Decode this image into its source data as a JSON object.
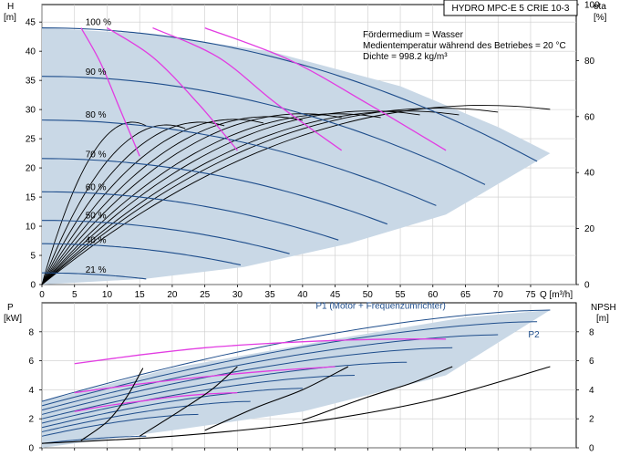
{
  "title_box": "HYDRO MPC-E 5 CRIE 10-3",
  "info": {
    "medium": "Fördermedium = Wasser",
    "temperature": "Medientemperatur während des Betriebes = 20 °C",
    "density": "Dichte = 998.2 kg/m³"
  },
  "colors": {
    "envelope": "#c9d8e6",
    "speed_curve": "#1f4e8c",
    "magenta": "#e23ce2",
    "eff_curve": "#000000",
    "grid": "#cccccc"
  },
  "chart_data": [
    {
      "type": "line",
      "name": "top",
      "y_axis_left": {
        "label_line1": "H",
        "label_line2": "[m]",
        "ticks": [
          0,
          5,
          10,
          15,
          20,
          25,
          30,
          35,
          40,
          45
        ],
        "range": [
          0,
          48
        ]
      },
      "y_axis_right": {
        "label_line1": "eta",
        "label_line2": "[%]",
        "ticks": [
          0,
          20,
          40,
          60,
          80,
          100
        ],
        "range": [
          0,
          100
        ]
      },
      "x_axis": {
        "label": "Q [m³/h]",
        "ticks": [
          0,
          5,
          10,
          15,
          20,
          25,
          30,
          35,
          40,
          45,
          50,
          55,
          60,
          65,
          70,
          75
        ],
        "range": [
          0,
          82
        ]
      },
      "speed_labels": [
        {
          "text": "100 %",
          "q": 2.2,
          "h": 44.5
        },
        {
          "text": "90 %",
          "q": 2.2,
          "h": 36.0
        },
        {
          "text": "80 %",
          "q": 2.2,
          "h": 28.6
        },
        {
          "text": "70 %",
          "q": 2.2,
          "h": 21.8
        },
        {
          "text": "60 %",
          "q": 2.2,
          "h": 16.2
        },
        {
          "text": "50 %",
          "q": 2.2,
          "h": 11.3
        },
        {
          "text": "40 %",
          "q": 2.2,
          "h": 7.1
        },
        {
          "text": "21 %",
          "q": 2.2,
          "h": 2.0
        }
      ],
      "speed_curves": [
        {
          "h0": 44,
          "qmax": 76
        },
        {
          "h0": 35.7,
          "qmax": 68
        },
        {
          "h0": 28.2,
          "qmax": 60.5
        },
        {
          "h0": 21.6,
          "qmax": 53
        },
        {
          "h0": 15.9,
          "qmax": 45.5
        },
        {
          "h0": 11.0,
          "qmax": 38
        },
        {
          "h0": 7.0,
          "qmax": 30.5
        },
        {
          "h0": 2.0,
          "qmax": 16
        }
      ],
      "envelope": {
        "q": [
          0,
          16,
          35,
          55,
          70,
          78,
          62,
          47,
          31,
          16,
          0
        ],
        "h": [
          44,
          43,
          40,
          34,
          27,
          22.5,
          12,
          7,
          3,
          1,
          0
        ]
      },
      "magenta_curves": [
        {
          "q": [
            6,
            9,
            12,
            15
          ],
          "h": [
            44,
            38,
            30,
            22
          ]
        },
        {
          "q": [
            10,
            17,
            24,
            30
          ],
          "h": [
            44,
            39,
            31,
            23
          ]
        },
        {
          "q": [
            17,
            27,
            36,
            46
          ],
          "h": [
            44,
            39,
            31,
            23
          ]
        },
        {
          "q": [
            25,
            38,
            50,
            62
          ],
          "h": [
            44,
            38.5,
            31,
            23
          ]
        }
      ],
      "eff_curves": [
        {
          "qs": 0,
          "qe": 16,
          "peak": 58
        },
        {
          "qs": 0,
          "qe": 22,
          "peak": 57
        },
        {
          "qs": 0,
          "qe": 28,
          "peak": 58
        },
        {
          "qs": 0,
          "qe": 34,
          "peak": 59
        },
        {
          "qs": 0,
          "qe": 40,
          "peak": 60
        },
        {
          "qs": 0,
          "qe": 46,
          "peak": 61
        },
        {
          "qs": 0,
          "qe": 52,
          "peak": 61
        },
        {
          "qs": 0,
          "qe": 58,
          "peak": 62
        },
        {
          "qs": 0,
          "qe": 64,
          "peak": 62
        },
        {
          "qs": 0,
          "qe": 70,
          "peak": 63
        },
        {
          "qs": 0,
          "qe": 78,
          "peak": 64
        }
      ]
    },
    {
      "type": "line",
      "name": "bottom",
      "y_axis_left": {
        "label_line1": "P",
        "label_line2": "[kW]",
        "ticks": [
          0,
          2,
          4,
          6,
          8
        ],
        "range": [
          0,
          10
        ]
      },
      "y_axis_right": {
        "label_line1": "NPSH",
        "label_line2": "[m]",
        "ticks": [
          0,
          2,
          4,
          6,
          8
        ],
        "range": [
          0,
          10
        ]
      },
      "x_axis": {
        "range": [
          0,
          82
        ]
      },
      "annotations": [
        {
          "text": "P1 (Motor + Frequenzumrichter)",
          "q": 52,
          "v": 9.6
        },
        {
          "text": "P2",
          "q": 75.5,
          "v": 7.6
        }
      ],
      "envelope": {
        "q": [
          0,
          0,
          20,
          45,
          65,
          78,
          62,
          40,
          20,
          0
        ],
        "v": [
          0,
          3.2,
          5.5,
          7.5,
          9,
          9.5,
          5,
          2.5,
          1.2,
          0
        ]
      },
      "power_curves": [
        {
          "v0": 3.2,
          "qmax": 78,
          "vmax": 9.5
        },
        {
          "v0": 2.9,
          "qmax": 76,
          "vmax": 8.7
        },
        {
          "v0": 2.6,
          "qmax": 70,
          "vmax": 7.8
        },
        {
          "v0": 2.3,
          "qmax": 63,
          "vmax": 6.9
        },
        {
          "v0": 2.0,
          "qmax": 56,
          "vmax": 5.9
        },
        {
          "v0": 1.7,
          "qmax": 48,
          "vmax": 5.0
        },
        {
          "v0": 1.4,
          "qmax": 40,
          "vmax": 4.1
        },
        {
          "v0": 1.1,
          "qmax": 32,
          "vmax": 3.2
        },
        {
          "v0": 0.8,
          "qmax": 24,
          "vmax": 2.3
        },
        {
          "v0": 0.3,
          "qmax": 16,
          "vmax": 0.8
        }
      ],
      "magenta_curves": [
        {
          "q": [
            5,
            15,
            25,
            35,
            45,
            55,
            62
          ],
          "v": [
            5.8,
            6.4,
            6.9,
            7.2,
            7.4,
            7.5,
            7.5
          ]
        },
        {
          "q": [
            5,
            15,
            25,
            35,
            45
          ],
          "v": [
            3.8,
            4.4,
            4.9,
            5.3,
            5.6
          ]
        },
        {
          "q": [
            5,
            10,
            15,
            20,
            25,
            30
          ],
          "v": [
            2.5,
            2.9,
            3.2,
            3.5,
            3.7,
            3.8
          ]
        }
      ],
      "npsh_curves": [
        {
          "q": [
            0,
            20,
            40,
            60,
            78
          ],
          "v": [
            0.3,
            0.8,
            1.7,
            3.3,
            5.6
          ]
        },
        {
          "q": [
            6,
            10,
            13,
            15.5
          ],
          "v": [
            0.5,
            1.8,
            3.5,
            5.5
          ]
        },
        {
          "q": [
            15,
            21,
            26,
            30
          ],
          "v": [
            0.8,
            2.5,
            4.0,
            5.6
          ]
        },
        {
          "q": [
            25,
            33,
            40,
            47
          ],
          "v": [
            1.2,
            2.8,
            4.0,
            5.6
          ]
        },
        {
          "q": [
            40,
            50,
            57,
            63
          ],
          "v": [
            1.9,
            3.5,
            4.5,
            5.6
          ]
        }
      ]
    }
  ]
}
